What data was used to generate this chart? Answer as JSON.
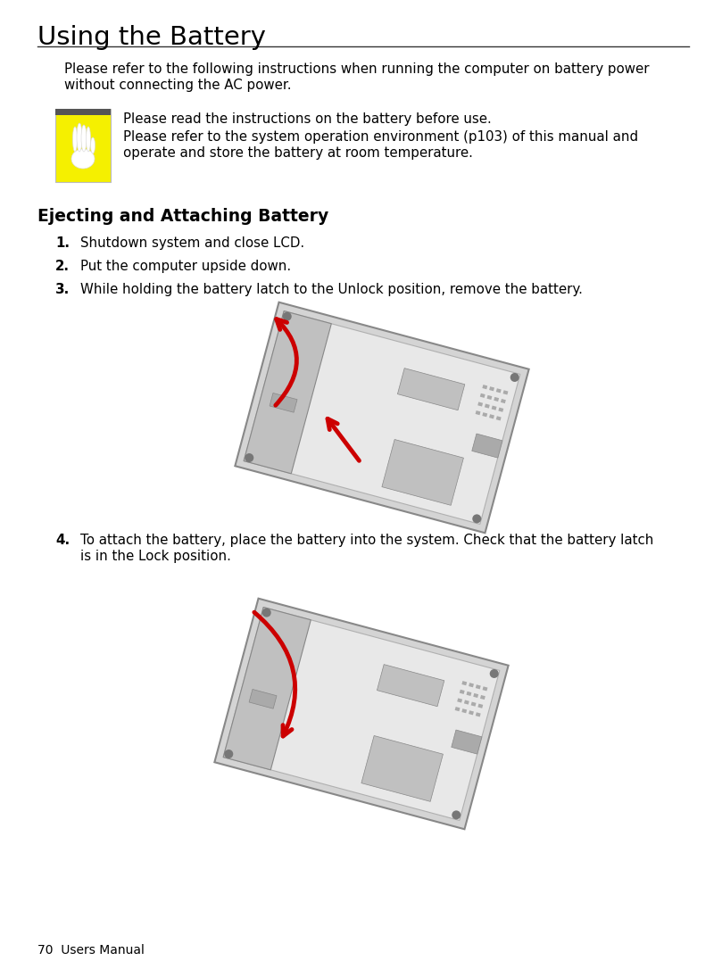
{
  "title": "Using the Battery",
  "page_number": "70  Users Manual",
  "bg_color": "#ffffff",
  "title_color": "#000000",
  "title_fontsize": 21,
  "body_fontsize": 10.8,
  "bold_section_title": "Ejecting and Attaching Battery",
  "bold_section_fontsize": 13.5,
  "intro_line1": "Please refer to the following instructions when running the computer on battery power",
  "intro_line2": "without connecting the AC power.",
  "warning_line1": "Please read the instructions on the battery before use.",
  "warning_line2": "Please refer to the system operation environment (p103) of this manual and",
  "warning_line3": "operate and store the battery at room temperature.",
  "warning_box_yellow": "#F5F000",
  "warning_box_dark_stripe": "#555555",
  "step1": "Shutdown system and close LCD.",
  "step2": "Put the computer upside down.",
  "step3": "While holding the battery latch to the Unlock position, remove the battery.",
  "step4_line1": "To attach the battery, place the battery into the system. Check that the battery latch",
  "step4_line2": "is in the Lock position.",
  "arrow_color": "#cc0000",
  "laptop_silver": "#d4d4d4",
  "laptop_light": "#e8e8e8",
  "laptop_mid": "#c0c0c0",
  "laptop_dark": "#aaaaaa",
  "laptop_edge": "#b0b0b0",
  "laptop_shadow": "#888888"
}
